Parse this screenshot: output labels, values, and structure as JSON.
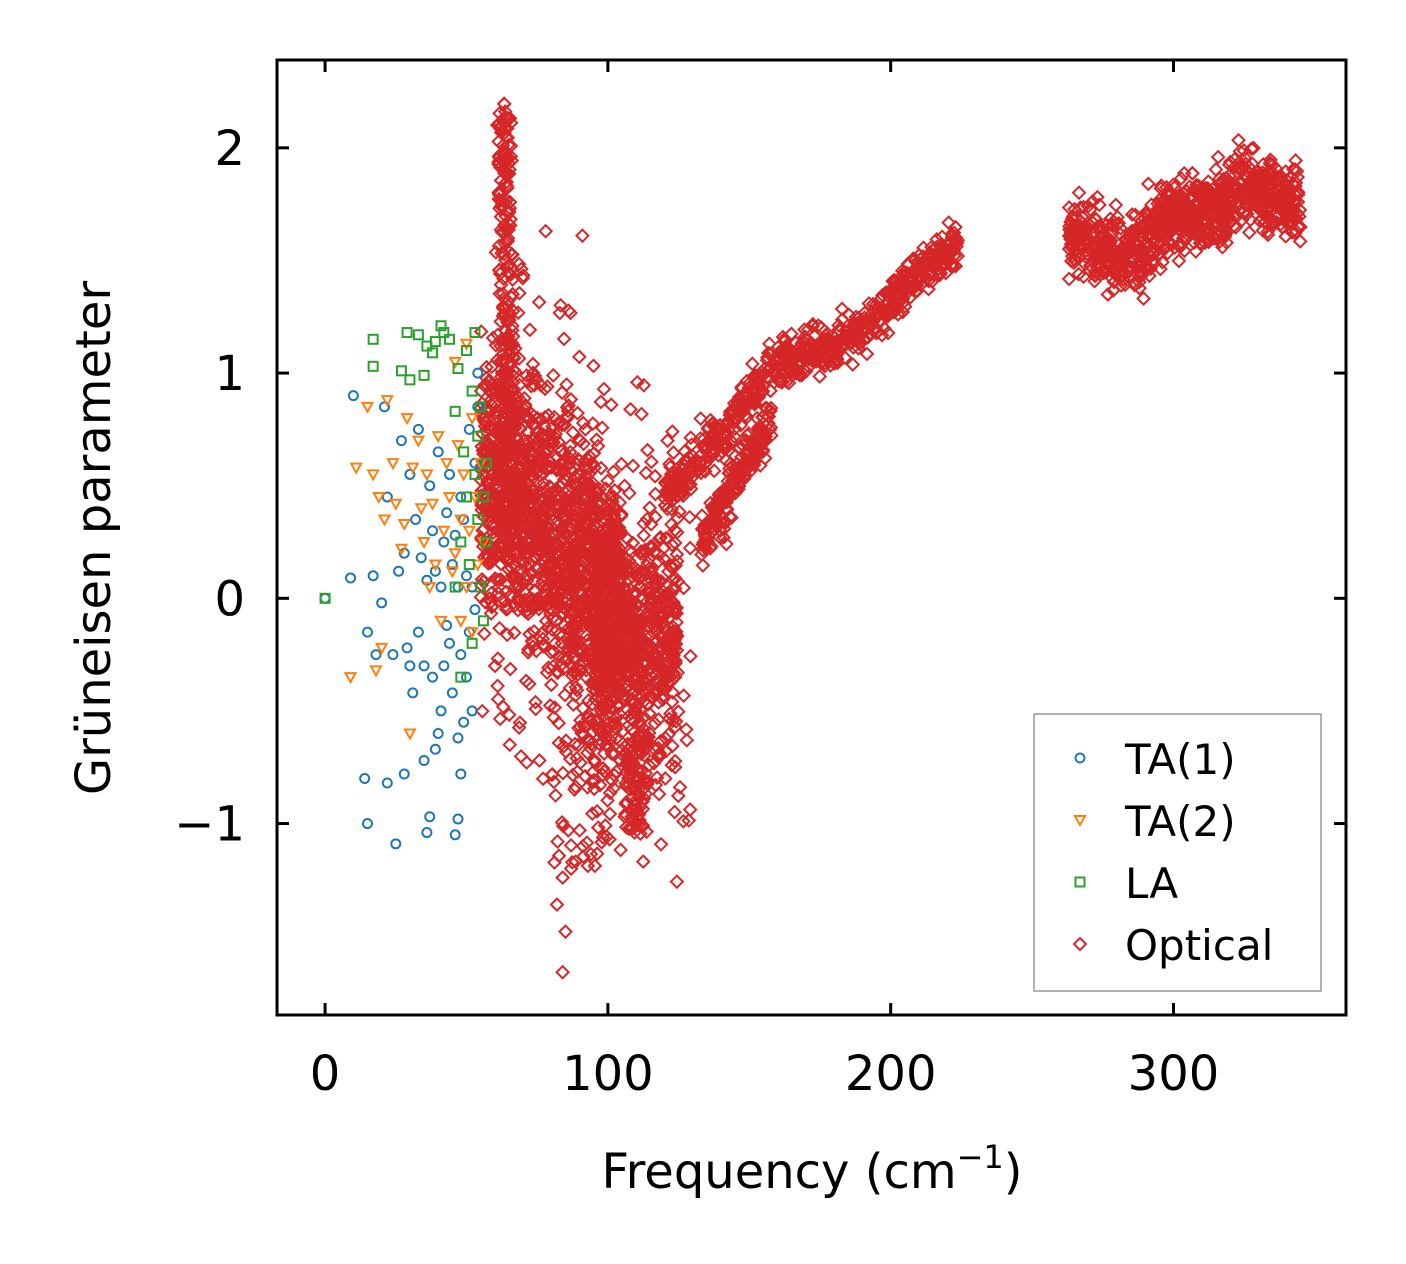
{
  "chart_data": {
    "type": "scatter",
    "title": "",
    "xlabel": "Frequency (cm",
    "xlabel_sup": "−1",
    "xlabel_close": ")",
    "ylabel": "Grüneisen parameter",
    "xlim": [
      -17,
      361
    ],
    "ylim": [
      -1.85,
      2.39
    ],
    "xticks": [
      0,
      100,
      200,
      300
    ],
    "xtick_labels": [
      "0",
      "100",
      "200",
      "300"
    ],
    "yticks": [
      -1,
      0,
      1,
      2
    ],
    "ytick_labels": [
      "−1",
      "0",
      "1",
      "2"
    ],
    "grid": false,
    "legend_position": "lower-right",
    "series": [
      {
        "name": "TA(1)",
        "marker": "circle",
        "color": "#1f77b4",
        "points": [
          [
            0,
            0
          ],
          [
            9,
            0.09
          ],
          [
            10,
            0.9
          ],
          [
            14,
            -0.8
          ],
          [
            15,
            -1.0
          ],
          [
            15,
            -0.15
          ],
          [
            17,
            0.1
          ],
          [
            18,
            -0.25
          ],
          [
            20,
            -0.02
          ],
          [
            21,
            0.85
          ],
          [
            22,
            -0.82
          ],
          [
            22,
            0.45
          ],
          [
            24,
            -0.25
          ],
          [
            25,
            -1.09
          ],
          [
            26,
            0.12
          ],
          [
            27,
            0.7
          ],
          [
            28,
            -0.78
          ],
          [
            28,
            0.2
          ],
          [
            29,
            -0.22
          ],
          [
            30,
            0.55
          ],
          [
            30,
            -0.3
          ],
          [
            31,
            -0.42
          ],
          [
            32,
            0.35
          ],
          [
            33,
            0.75
          ],
          [
            33,
            -0.15
          ],
          [
            34,
            0.18
          ],
          [
            35,
            -0.72
          ],
          [
            35,
            -0.3
          ],
          [
            36,
            0.08
          ],
          [
            36,
            -1.04
          ],
          [
            37,
            -0.97
          ],
          [
            37,
            0.5
          ],
          [
            38,
            0.3
          ],
          [
            38,
            -0.35
          ],
          [
            39,
            -0.67
          ],
          [
            39,
            0.12
          ],
          [
            40,
            0.65
          ],
          [
            40,
            -0.6
          ],
          [
            41,
            -0.5
          ],
          [
            41,
            0.05
          ],
          [
            42,
            0.25
          ],
          [
            42,
            -0.3
          ],
          [
            43,
            0.38
          ],
          [
            43,
            -0.12
          ],
          [
            44,
            0.55
          ],
          [
            44,
            -0.2
          ],
          [
            45,
            0.15
          ],
          [
            45,
            -0.42
          ],
          [
            46,
            -1.05
          ],
          [
            46,
            0.28
          ],
          [
            47,
            -0.98
          ],
          [
            47,
            0.05
          ],
          [
            47,
            -0.62
          ],
          [
            48,
            -0.78
          ],
          [
            48,
            -0.25
          ],
          [
            48,
            0.45
          ],
          [
            49,
            0.35
          ],
          [
            49,
            -0.55
          ],
          [
            50,
            0.1
          ],
          [
            50,
            -0.35
          ],
          [
            51,
            0.75
          ],
          [
            51,
            -0.15
          ],
          [
            52,
            0.05
          ],
          [
            52,
            -0.5
          ],
          [
            53,
            -0.05
          ],
          [
            53,
            0.6
          ],
          [
            54,
            0.85
          ],
          [
            54,
            1.0
          ]
        ]
      },
      {
        "name": "TA(2)",
        "marker": "triangle-down",
        "color": "#ff7f0e",
        "points": [
          [
            9,
            -0.35
          ],
          [
            11,
            0.58
          ],
          [
            15,
            0.85
          ],
          [
            17,
            0.55
          ],
          [
            18,
            -0.32
          ],
          [
            19,
            0.45
          ],
          [
            20,
            -0.22
          ],
          [
            21,
            0.35
          ],
          [
            22,
            0.88
          ],
          [
            24,
            0.6
          ],
          [
            25,
            0.42
          ],
          [
            27,
            0.22
          ],
          [
            28,
            0.33
          ],
          [
            29,
            0.8
          ],
          [
            30,
            -0.6
          ],
          [
            31,
            0.58
          ],
          [
            33,
            0.7
          ],
          [
            34,
            0.4
          ],
          [
            35,
            0.25
          ],
          [
            36,
            0.55
          ],
          [
            37,
            0.05
          ],
          [
            38,
            0.42
          ],
          [
            39,
            0.15
          ],
          [
            40,
            0.72
          ],
          [
            41,
            -0.1
          ],
          [
            42,
            0.3
          ],
          [
            43,
            0.6
          ],
          [
            44,
            0.45
          ],
          [
            45,
            0.12
          ],
          [
            46,
            0.2
          ],
          [
            46,
            1.05
          ],
          [
            47,
            0.68
          ],
          [
            48,
            0.35
          ],
          [
            48,
            -0.1
          ],
          [
            49,
            0.55
          ],
          [
            50,
            1.13
          ],
          [
            50,
            0.05
          ],
          [
            51,
            0.3
          ],
          [
            52,
            0.8
          ],
          [
            52,
            -0.15
          ],
          [
            53,
            0.45
          ],
          [
            54,
            0.15
          ],
          [
            55,
            0.6
          ],
          [
            56,
            0.25
          ]
        ]
      },
      {
        "name": "LA",
        "marker": "square",
        "color": "#2ca02c",
        "points": [
          [
            0,
            0
          ],
          [
            17,
            1.15
          ],
          [
            17,
            1.03
          ],
          [
            27,
            1.01
          ],
          [
            29,
            1.18
          ],
          [
            30,
            0.97
          ],
          [
            33,
            1.17
          ],
          [
            35,
            0.99
          ],
          [
            36,
            1.12
          ],
          [
            38,
            1.09
          ],
          [
            39,
            1.14
          ],
          [
            41,
            1.21
          ],
          [
            42,
            1.18
          ],
          [
            44,
            1.15
          ],
          [
            46,
            0.83
          ],
          [
            46,
            0.05
          ],
          [
            47,
            1.02
          ],
          [
            48,
            0.25
          ],
          [
            48,
            -0.35
          ],
          [
            49,
            0.65
          ],
          [
            50,
            0.45
          ],
          [
            50,
            1.1
          ],
          [
            51,
            0.15
          ],
          [
            52,
            0.92
          ],
          [
            52,
            -0.2
          ],
          [
            53,
            0.55
          ],
          [
            53,
            1.18
          ],
          [
            54,
            0.35
          ],
          [
            54,
            0.72
          ],
          [
            55,
            0.05
          ],
          [
            55,
            0.85
          ],
          [
            56,
            0.45
          ],
          [
            56,
            -0.1
          ],
          [
            57,
            0.6
          ],
          [
            57,
            0.25
          ]
        ]
      },
      {
        "name": "Optical",
        "marker": "diamond",
        "color": "#d62728",
        "points": []
      }
    ]
  }
}
